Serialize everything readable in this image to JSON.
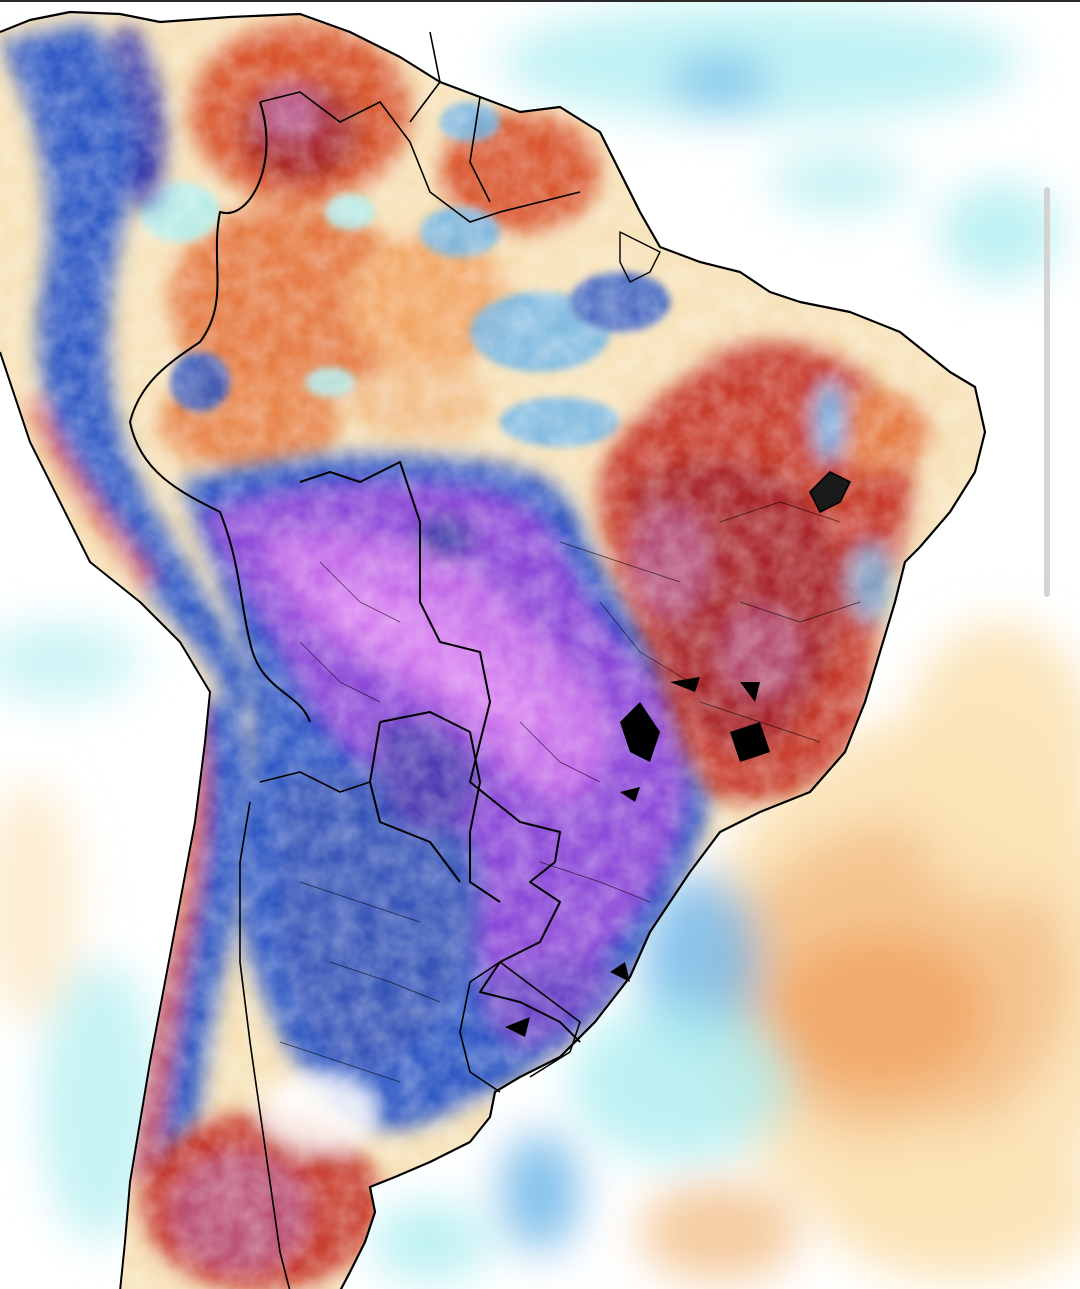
{
  "map": {
    "type": "temperature-anomaly-map",
    "region": "South America",
    "palette": {
      "ocean_white": "#ffffff",
      "cool_light": "#aeeef0",
      "cool_mid": "#6fb6e8",
      "cold": "#2f58c4",
      "very_cold": "#3b3aa8",
      "frigid_purple": "#8c48d8",
      "frigid_pink": "#d67ff0",
      "warm_light": "#fbe3b6",
      "warm_mid": "#f2a766",
      "hot": "#d9572f",
      "very_hot": "#a8252a",
      "extreme_hot": "#b85a8a",
      "border_line": "#000000"
    },
    "regions": [
      {
        "name": "cold-air-mass",
        "anomaly": "cold"
      },
      {
        "name": "northeast-brazil-heat",
        "anomaly": "warm"
      },
      {
        "name": "amazon-warm-patchy",
        "anomaly": "warm"
      },
      {
        "name": "patagonia-heat",
        "anomaly": "warm"
      },
      {
        "name": "atlantic-warm-plume",
        "anomaly": "warm"
      }
    ]
  },
  "scrollbar": {
    "position_fraction": 0.0
  }
}
